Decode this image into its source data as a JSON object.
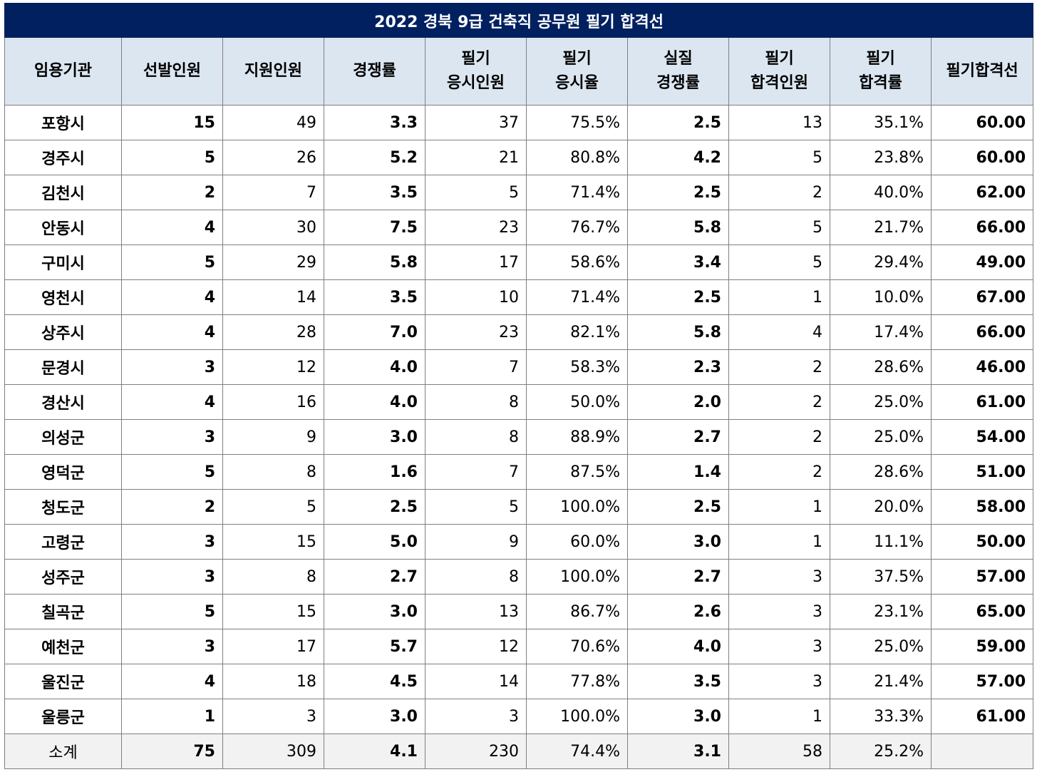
{
  "title": "2022 경북 9급 건축직 공무원 필기 합격선",
  "headers": [
    [
      "임용기관"
    ],
    [
      "선발인원"
    ],
    [
      "지원인원"
    ],
    [
      "경쟁률"
    ],
    [
      "필기",
      "응시인원"
    ],
    [
      "필기",
      "응시율"
    ],
    [
      "실질",
      "경쟁률"
    ],
    [
      "필기",
      "합격인원"
    ],
    [
      "필기",
      "합격률"
    ],
    [
      "필기합격선"
    ]
  ],
  "rows": [
    [
      "포항시",
      "15",
      "49",
      "3.3",
      "37",
      "75.5%",
      "2.5",
      "13",
      "35.1%",
      "60.00"
    ],
    [
      "경주시",
      "5",
      "26",
      "5.2",
      "21",
      "80.8%",
      "4.2",
      "5",
      "23.8%",
      "60.00"
    ],
    [
      "김천시",
      "2",
      "7",
      "3.5",
      "5",
      "71.4%",
      "2.5",
      "2",
      "40.0%",
      "62.00"
    ],
    [
      "안동시",
      "4",
      "30",
      "7.5",
      "23",
      "76.7%",
      "5.8",
      "5",
      "21.7%",
      "66.00"
    ],
    [
      "구미시",
      "5",
      "29",
      "5.8",
      "17",
      "58.6%",
      "3.4",
      "5",
      "29.4%",
      "49.00"
    ],
    [
      "영천시",
      "4",
      "14",
      "3.5",
      "10",
      "71.4%",
      "2.5",
      "1",
      "10.0%",
      "67.00"
    ],
    [
      "상주시",
      "4",
      "28",
      "7.0",
      "23",
      "82.1%",
      "5.8",
      "4",
      "17.4%",
      "66.00"
    ],
    [
      "문경시",
      "3",
      "12",
      "4.0",
      "7",
      "58.3%",
      "2.3",
      "2",
      "28.6%",
      "46.00"
    ],
    [
      "경산시",
      "4",
      "16",
      "4.0",
      "8",
      "50.0%",
      "2.0",
      "2",
      "25.0%",
      "61.00"
    ],
    [
      "의성군",
      "3",
      "9",
      "3.0",
      "8",
      "88.9%",
      "2.7",
      "2",
      "25.0%",
      "54.00"
    ],
    [
      "영덕군",
      "5",
      "8",
      "1.6",
      "7",
      "87.5%",
      "1.4",
      "2",
      "28.6%",
      "51.00"
    ],
    [
      "청도군",
      "2",
      "5",
      "2.5",
      "5",
      "100.0%",
      "2.5",
      "1",
      "20.0%",
      "58.00"
    ],
    [
      "고령군",
      "3",
      "15",
      "5.0",
      "9",
      "60.0%",
      "3.0",
      "1",
      "11.1%",
      "50.00"
    ],
    [
      "성주군",
      "3",
      "8",
      "2.7",
      "8",
      "100.0%",
      "2.7",
      "3",
      "37.5%",
      "57.00"
    ],
    [
      "칠곡군",
      "5",
      "15",
      "3.0",
      "13",
      "86.7%",
      "2.6",
      "3",
      "23.1%",
      "65.00"
    ],
    [
      "예천군",
      "3",
      "17",
      "5.7",
      "12",
      "70.6%",
      "4.0",
      "3",
      "25.0%",
      "59.00"
    ],
    [
      "울진군",
      "4",
      "18",
      "4.5",
      "14",
      "77.8%",
      "3.5",
      "3",
      "21.4%",
      "57.00"
    ],
    [
      "울릉군",
      "1",
      "3",
      "3.0",
      "3",
      "100.0%",
      "3.0",
      "1",
      "33.3%",
      "61.00"
    ]
  ],
  "total": [
    "소계",
    "75",
    "309",
    "4.1",
    "230",
    "74.4%",
    "3.1",
    "58",
    "25.2%",
    ""
  ],
  "colors": {
    "title_bg": "#002060",
    "header_bg": "#dce6f1",
    "cutoff_text": "#0070c0",
    "total_bg": "#f2f2f2"
  }
}
